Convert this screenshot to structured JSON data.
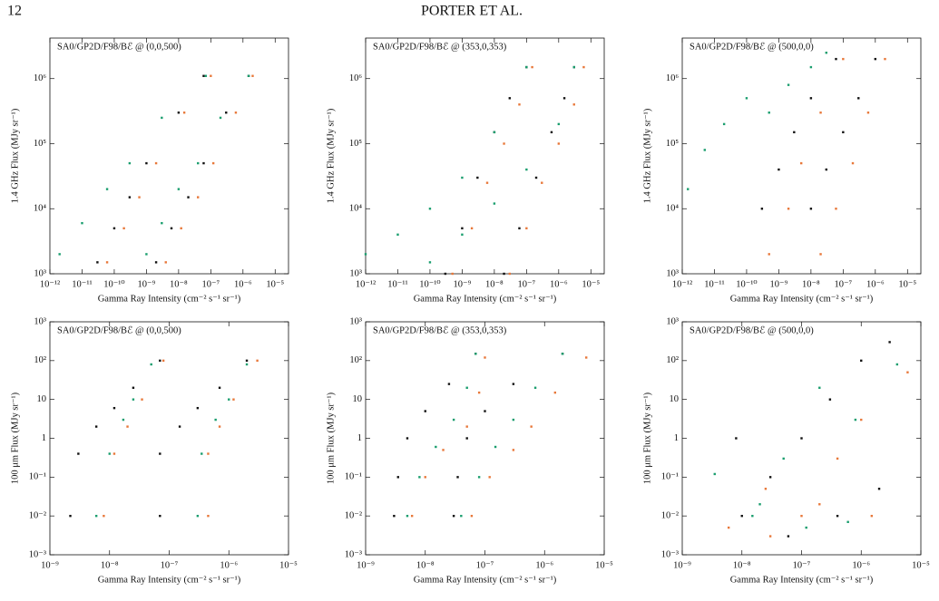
{
  "page_header": {
    "page_number": "12",
    "authors": "PORTER ET AL."
  },
  "chart_data": [
    {
      "type": "scatter",
      "annotation": "SA0/GP2D/F98/Bℰ @ (0,0,500)",
      "x_label": "Gamma Ray Intensity (cm⁻² s⁻¹ sr⁻¹)",
      "y_label": "1.4 GHz Flux (MJy sr⁻¹)",
      "log_x": true,
      "log_y": true,
      "xlim": [
        1e-12,
        2.6e-05
      ],
      "ylim": [
        1000,
        4200000
      ],
      "xticks": [
        {
          "value": 1e-12,
          "label": "10⁻¹²"
        },
        {
          "value": 1e-11,
          "label": "10⁻¹¹"
        },
        {
          "value": 1e-10,
          "label": "10⁻¹⁰"
        },
        {
          "value": 1e-09,
          "label": "10⁻⁹"
        },
        {
          "value": 1e-08,
          "label": "10⁻⁸"
        },
        {
          "value": 1e-07,
          "label": "10⁻⁷"
        },
        {
          "value": 1e-06,
          "label": "10⁻⁶"
        },
        {
          "value": 1e-05,
          "label": "10⁻⁵"
        }
      ],
      "yticks": [
        {
          "value": 1000,
          "label": "10³"
        },
        {
          "value": 10000,
          "label": "10⁴"
        },
        {
          "value": 100000,
          "label": "10⁵"
        },
        {
          "value": 1000000,
          "label": "10⁶"
        }
      ],
      "series": [
        {
          "color": "#111111",
          "x": [
            3e-11,
            1e-10,
            3e-10,
            1e-09,
            1e-08,
            6e-08,
            2e-09,
            6e-09,
            2e-08,
            6e-08,
            3e-07,
            1.5e-06
          ],
          "values": [
            1500,
            5000,
            15000,
            50000,
            300000,
            1100000,
            1500,
            5000,
            15000,
            50000,
            300000,
            1100000
          ]
        },
        {
          "color": "#1a9e6e",
          "x": [
            2e-12,
            1e-11,
            6e-11,
            3e-10,
            3e-09,
            7e-08,
            1e-09,
            3e-09,
            1e-08,
            4e-08,
            2e-07,
            1.5e-06
          ],
          "values": [
            2000,
            6000,
            20000,
            50000,
            250000,
            1100000,
            2000,
            6000,
            20000,
            50000,
            250000,
            1100000
          ]
        },
        {
          "color": "#e8783a",
          "x": [
            6e-11,
            2e-10,
            6e-10,
            2e-09,
            1.5e-08,
            1e-07,
            4e-09,
            1.2e-08,
            4e-08,
            1.2e-07,
            6e-07,
            2e-06
          ],
          "values": [
            1500,
            5000,
            15000,
            50000,
            300000,
            1100000,
            1500,
            5000,
            15000,
            50000,
            300000,
            1100000
          ]
        }
      ]
    },
    {
      "type": "scatter",
      "annotation": "SA0/GP2D/F98/Bℰ @ (353,0,353)",
      "x_label": "Gamma Ray Intensity (cm⁻² s⁻¹ sr⁻¹)",
      "y_label": "1.4 GHz Flux (MJy sr⁻¹)",
      "log_x": true,
      "log_y": true,
      "xlim": [
        1e-12,
        2.6e-05
      ],
      "ylim": [
        1000,
        4200000
      ],
      "xticks": [
        {
          "value": 1e-12,
          "label": "10⁻¹²"
        },
        {
          "value": 1e-11,
          "label": "10⁻¹¹"
        },
        {
          "value": 1e-10,
          "label": "10⁻¹⁰"
        },
        {
          "value": 1e-09,
          "label": "10⁻⁹"
        },
        {
          "value": 1e-08,
          "label": "10⁻⁸"
        },
        {
          "value": 1e-07,
          "label": "10⁻⁷"
        },
        {
          "value": 1e-06,
          "label": "10⁻⁶"
        },
        {
          "value": 1e-05,
          "label": "10⁻⁵"
        }
      ],
      "yticks": [
        {
          "value": 1000,
          "label": "10³"
        },
        {
          "value": 10000,
          "label": "10⁴"
        },
        {
          "value": 100000,
          "label": "10⁵"
        },
        {
          "value": 1000000,
          "label": "10⁶"
        }
      ],
      "series": [
        {
          "color": "#111111",
          "x": [
            3e-10,
            1e-09,
            3e-09,
            1e-08,
            3e-08,
            1e-07,
            2e-08,
            6e-08,
            2e-07,
            6e-07,
            1.5e-06,
            3e-06
          ],
          "values": [
            1000,
            5000,
            30000,
            150000,
            500000,
            1500000,
            1000,
            5000,
            30000,
            150000,
            500000,
            1500000
          ]
        },
        {
          "color": "#1a9e6e",
          "x": [
            1e-12,
            1e-11,
            1e-10,
            1e-09,
            1e-08,
            1e-07,
            1e-10,
            1e-09,
            1e-08,
            1e-07,
            1e-06,
            3e-06
          ],
          "values": [
            2000,
            4000,
            10000,
            30000,
            150000,
            1500000,
            1500,
            4000,
            12000,
            40000,
            200000,
            1500000
          ]
        },
        {
          "color": "#e8783a",
          "x": [
            5e-10,
            2e-09,
            6e-09,
            2e-08,
            6e-08,
            1.5e-07,
            3e-08,
            1e-07,
            3e-07,
            1e-06,
            3e-06,
            6e-06
          ],
          "values": [
            1000,
            5000,
            25000,
            100000,
            400000,
            1500000,
            1000,
            5000,
            25000,
            100000,
            400000,
            1500000
          ]
        }
      ]
    },
    {
      "type": "scatter",
      "annotation": "SA0/GP2D/F98/Bℰ @ (500,0,0)",
      "x_label": "Gamma Ray Intensity (cm⁻² s⁻¹ sr⁻¹)",
      "y_label": "1.4 GHz Flux (MJy sr⁻¹)",
      "log_x": true,
      "log_y": true,
      "xlim": [
        1e-12,
        2.6e-05
      ],
      "ylim": [
        1000,
        4200000
      ],
      "xticks": [
        {
          "value": 1e-12,
          "label": "10⁻¹²"
        },
        {
          "value": 1e-11,
          "label": "10⁻¹¹"
        },
        {
          "value": 1e-10,
          "label": "10⁻¹⁰"
        },
        {
          "value": 1e-09,
          "label": "10⁻⁹"
        },
        {
          "value": 1e-08,
          "label": "10⁻⁸"
        },
        {
          "value": 1e-07,
          "label": "10⁻⁷"
        },
        {
          "value": 1e-06,
          "label": "10⁻⁶"
        },
        {
          "value": 1e-05,
          "label": "10⁻⁵"
        }
      ],
      "yticks": [
        {
          "value": 1000,
          "label": "10³"
        },
        {
          "value": 10000,
          "label": "10⁴"
        },
        {
          "value": 100000,
          "label": "10⁵"
        },
        {
          "value": 1000000,
          "label": "10⁶"
        }
      ],
      "series": [
        {
          "color": "#111111",
          "x": [
            3e-10,
            1e-09,
            3e-09,
            1e-08,
            6e-08,
            1e-08,
            3e-08,
            1e-07,
            3e-07,
            1e-06
          ],
          "values": [
            10000,
            40000,
            150000,
            500000,
            2000000,
            10000,
            40000,
            150000,
            500000,
            2000000
          ]
        },
        {
          "color": "#1a9e6e",
          "x": [
            1.5e-12,
            5e-12,
            2e-11,
            1e-10,
            5e-10,
            2e-09,
            1e-08,
            3e-08
          ],
          "values": [
            20000,
            80000,
            200000,
            500000,
            300000,
            800000,
            1500000,
            2500000
          ]
        },
        {
          "color": "#e8783a",
          "x": [
            5e-10,
            2e-09,
            5e-09,
            2e-08,
            1e-07,
            2e-08,
            6e-08,
            2e-07,
            6e-07,
            2e-06
          ],
          "values": [
            2000,
            10000,
            50000,
            300000,
            2000000,
            2000,
            10000,
            50000,
            300000,
            2000000
          ]
        }
      ]
    },
    {
      "type": "scatter",
      "annotation": "SA0/GP2D/F98/Bℰ @ (0,0,500)",
      "x_label": "Gamma Ray Intensity (cm⁻² s⁻¹ sr⁻¹)",
      "y_label": "100 μm Flux (MJy sr⁻¹)",
      "log_x": true,
      "log_y": true,
      "xlim": [
        1e-09,
        1e-05
      ],
      "ylim": [
        0.001,
        1000
      ],
      "xticks": [
        {
          "value": 1e-09,
          "label": "10⁻⁹"
        },
        {
          "value": 1e-08,
          "label": "10⁻⁸"
        },
        {
          "value": 1e-07,
          "label": "10⁻⁷"
        },
        {
          "value": 1e-06,
          "label": "10⁻⁶"
        },
        {
          "value": 1e-05,
          "label": "10⁻⁵"
        }
      ],
      "yticks": [
        {
          "value": 0.001,
          "label": "10⁻³"
        },
        {
          "value": 0.01,
          "label": "10⁻²"
        },
        {
          "value": 0.1,
          "label": "10⁻¹"
        },
        1,
        10,
        {
          "value": 100,
          "label": "10²"
        },
        {
          "value": 1000,
          "label": "10³"
        }
      ],
      "series": [
        {
          "color": "#111111",
          "x": [
            3e-09,
            6e-09,
            1.2e-08,
            2.5e-08,
            7e-08,
            7e-08,
            1.5e-07,
            3e-07,
            7e-07,
            2e-06,
            2.2e-09,
            7e-08
          ],
          "values": [
            0.4,
            2,
            6,
            20,
            100,
            0.4,
            2,
            6,
            20,
            100,
            0.01,
            0.01
          ]
        },
        {
          "color": "#1a9e6e",
          "x": [
            1e-08,
            1.7e-08,
            2.5e-08,
            5e-08,
            3.5e-07,
            6e-07,
            1e-06,
            2e-06,
            6e-09,
            3e-07
          ],
          "values": [
            0.4,
            3,
            10,
            80,
            0.4,
            3,
            10,
            80,
            0.01,
            0.01
          ]
        },
        {
          "color": "#e8783a",
          "x": [
            1.2e-08,
            2e-08,
            3.5e-08,
            8e-08,
            4.5e-07,
            7e-07,
            1.2e-06,
            3e-06,
            8e-09,
            4.5e-07
          ],
          "values": [
            0.4,
            2,
            10,
            100,
            0.4,
            2,
            10,
            100,
            0.01,
            0.01
          ]
        }
      ]
    },
    {
      "type": "scatter",
      "annotation": "SA0/GP2D/F98/Bℰ @ (353,0,353)",
      "x_label": "Gamma Ray Intensity (cm⁻² s⁻¹ sr⁻¹)",
      "y_label": "100 μm Flux (MJy sr⁻¹)",
      "log_x": true,
      "log_y": true,
      "xlim": [
        1e-09,
        1e-05
      ],
      "ylim": [
        0.001,
        1000
      ],
      "xticks": [
        {
          "value": 1e-09,
          "label": "10⁻⁹"
        },
        {
          "value": 1e-08,
          "label": "10⁻⁸"
        },
        {
          "value": 1e-07,
          "label": "10⁻⁷"
        },
        {
          "value": 1e-06,
          "label": "10⁻⁶"
        },
        {
          "value": 1e-05,
          "label": "10⁻⁵"
        }
      ],
      "yticks": [
        {
          "value": 0.001,
          "label": "10⁻³"
        },
        {
          "value": 0.01,
          "label": "10⁻²"
        },
        {
          "value": 0.1,
          "label": "10⁻¹"
        },
        1,
        10,
        {
          "value": 100,
          "label": "10²"
        },
        {
          "value": 1000,
          "label": "10³"
        }
      ],
      "series": [
        {
          "color": "#111111",
          "x": [
            3e-09,
            3.5e-09,
            5e-09,
            1e-08,
            2.5e-08,
            7e-08,
            3e-08,
            3.5e-08,
            5e-08,
            1e-07,
            3e-07,
            2e-06
          ],
          "values": [
            0.01,
            0.1,
            1,
            5,
            25,
            150,
            0.01,
            0.1,
            1,
            5,
            25,
            150
          ]
        },
        {
          "color": "#1a9e6e",
          "x": [
            5e-09,
            8e-09,
            1.5e-08,
            3e-08,
            5e-08,
            7e-08,
            4e-08,
            8e-08,
            1.5e-07,
            3e-07,
            7e-07,
            2e-06
          ],
          "values": [
            0.01,
            0.1,
            0.6,
            3,
            20,
            150,
            0.01,
            0.1,
            0.6,
            3,
            20,
            150
          ]
        },
        {
          "color": "#e8783a",
          "x": [
            6e-09,
            1e-08,
            2e-08,
            5e-08,
            8e-08,
            1e-07,
            6e-08,
            1.2e-07,
            3e-07,
            6e-07,
            1.5e-06,
            5e-06
          ],
          "values": [
            0.01,
            0.1,
            0.5,
            2,
            15,
            120,
            0.01,
            0.1,
            0.5,
            2,
            15,
            120
          ]
        }
      ]
    },
    {
      "type": "scatter",
      "annotation": "SA0/GP2D/F98/Bℰ @ (500,0,0)",
      "x_label": "Gamma Ray Intensity (cm⁻² s⁻¹ sr⁻¹)",
      "y_label": "100 μm Flux (MJy sr⁻¹)",
      "log_x": true,
      "log_y": true,
      "xlim": [
        1e-09,
        1e-05
      ],
      "ylim": [
        0.001,
        1000
      ],
      "xticks": [
        {
          "value": 1e-09,
          "label": "10⁻⁹"
        },
        {
          "value": 1e-08,
          "label": "10⁻⁸"
        },
        {
          "value": 1e-07,
          "label": "10⁻⁷"
        },
        {
          "value": 1e-06,
          "label": "10⁻⁶"
        },
        {
          "value": 1e-05,
          "label": "10⁻⁵"
        }
      ],
      "yticks": [
        {
          "value": 0.001,
          "label": "10⁻³"
        },
        {
          "value": 0.01,
          "label": "10⁻²"
        },
        {
          "value": 0.1,
          "label": "10⁻¹"
        },
        1,
        10,
        {
          "value": 100,
          "label": "10²"
        },
        {
          "value": 1000,
          "label": "10³"
        }
      ],
      "series": [
        {
          "color": "#111111",
          "x": [
            1e-08,
            3e-08,
            1e-07,
            3e-07,
            1e-06,
            3e-06,
            8e-09,
            6e-08,
            4e-07,
            2e-06
          ],
          "values": [
            0.01,
            0.1,
            1,
            10,
            100,
            300,
            1,
            0.003,
            0.01,
            0.05
          ]
        },
        {
          "color": "#1a9e6e",
          "x": [
            3.5e-09,
            1.5e-08,
            5e-08,
            2e-07,
            8e-07,
            4e-06,
            2e-08,
            1.2e-07,
            6e-07
          ],
          "values": [
            0.12,
            0.01,
            0.3,
            20,
            3,
            80,
            0.02,
            0.005,
            0.007
          ]
        },
        {
          "color": "#e8783a",
          "x": [
            6e-09,
            2.5e-08,
            1e-07,
            4e-07,
            1.5e-06,
            6e-06,
            3e-08,
            2e-07,
            1e-06
          ],
          "values": [
            0.005,
            0.05,
            0.01,
            0.3,
            0.01,
            50,
            0.003,
            0.02,
            3
          ]
        }
      ]
    }
  ]
}
